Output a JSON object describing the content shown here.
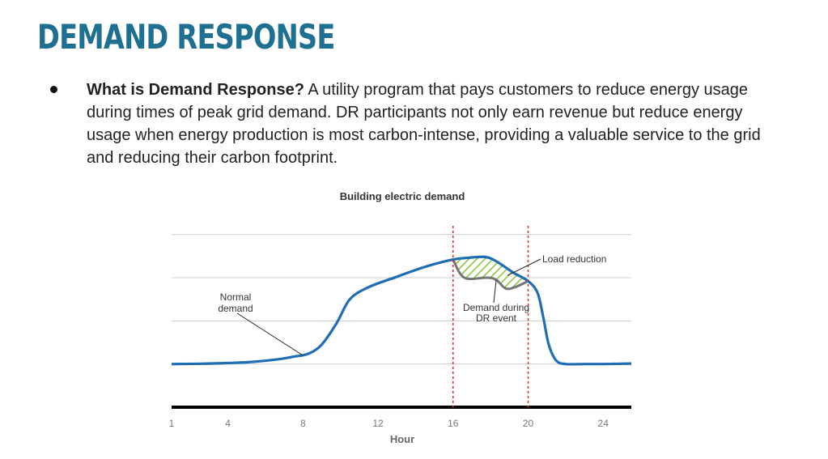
{
  "slide": {
    "title": "DEMAND RESPONSE",
    "bullet_label": "What is Demand Response?",
    "bullet_text": " A utility program that pays customers to reduce energy usage during times of peak grid demand. DR participants not only earn revenue but reduce energy usage when energy production is most carbon-intense, providing a valuable service to the grid and reducing their carbon footprint."
  },
  "colors": {
    "title": "#1f6f91",
    "curve": "#1f6db3",
    "event_line": "#e03030",
    "reduction_hatch": "#8cc63f",
    "dr_curve": "#777777"
  },
  "chart_data": {
    "type": "line",
    "title": "Building electric demand",
    "xlabel": "Hour",
    "ylabel": "",
    "xlim": [
      1,
      25.5
    ],
    "ylim": [
      0,
      4.2
    ],
    "xticks": [
      1,
      4,
      8,
      12,
      16,
      20,
      24
    ],
    "gridlines_y": [
      1,
      2,
      3,
      4
    ],
    "series": [
      {
        "name": "Normal demand",
        "x": [
          1,
          3,
          5,
          6.5,
          7.5,
          8.3,
          9,
          9.8,
          10.5,
          11.5,
          13,
          14.5,
          16,
          16.8,
          17.7,
          18.3,
          19.2,
          20,
          20.5,
          20.8,
          21.1,
          21.5,
          22,
          23,
          24,
          25.5
        ],
        "y": [
          1.0,
          1.01,
          1.04,
          1.1,
          1.17,
          1.24,
          1.45,
          1.95,
          2.5,
          2.78,
          3.02,
          3.25,
          3.42,
          3.46,
          3.48,
          3.38,
          3.12,
          2.92,
          2.65,
          2.1,
          1.45,
          1.08,
          1.0,
          1.0,
          1.0,
          1.01
        ]
      },
      {
        "name": "Demand during DR event",
        "x": [
          16,
          16.6,
          17.8,
          18.3,
          18.8,
          19.3,
          20
        ],
        "y": [
          3.42,
          3.0,
          3.0,
          2.95,
          2.75,
          2.78,
          2.92
        ]
      }
    ],
    "dr_event_hours": [
      16,
      20
    ],
    "annotations": [
      {
        "text_lines": [
          "Normal",
          "demand"
        ],
        "points_to": [
          8,
          1.2
        ]
      },
      {
        "text": "Load reduction",
        "points_to": [
          18.9,
          3.05
        ]
      },
      {
        "text_lines": [
          "Demand during",
          "DR event"
        ],
        "points_to": [
          18.3,
          2.95
        ]
      }
    ]
  }
}
